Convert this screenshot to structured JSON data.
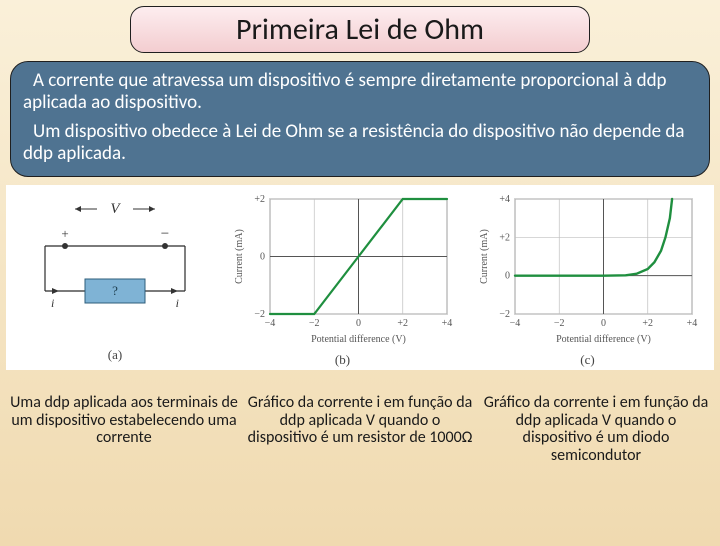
{
  "title": "Primeira Lei de Ohm",
  "desc_p1": "A corrente que atravessa um dispositivo é sempre diretamente proporcional à ddp aplicada ao dispositivo.",
  "desc_p2": "Um dispositivo obedece à Lei de Ohm se a resistência do dispositivo não depende da ddp aplicada.",
  "circuit": {
    "label_a": "(a)",
    "V_label": "V",
    "i_label_left": "i",
    "i_label_right": "i",
    "element_label": "?",
    "plus": "+",
    "minus": "−",
    "wire_color": "#2a2a2a",
    "resistor_fill": "#7fb3d5",
    "bg": "#ffffff"
  },
  "chart_b": {
    "type": "line",
    "label": "(b)",
    "xlabel": "Potential difference (V)",
    "ylabel": "Current (mA)",
    "xlim": [
      -4,
      4
    ],
    "ylim": [
      -2,
      2
    ],
    "xticks": [
      -4,
      -2,
      0,
      2,
      4
    ],
    "yticks": [
      -2,
      0,
      2
    ],
    "ytick_labels": [
      "−2",
      "0",
      "+2"
    ],
    "xtick_labels": [
      "−4",
      "−2",
      "0",
      "+2",
      "+4"
    ],
    "grid_color": "#bfbfbf",
    "axis_color": "#555555",
    "bg": "#ffffff",
    "line_color": "#1f8f3f",
    "line_width": 2.2,
    "data": [
      [
        -4,
        -4
      ],
      [
        4,
        4
      ]
    ],
    "slope_note": "linear through origin; clipped to ylim"
  },
  "chart_c": {
    "type": "line",
    "label": "(c)",
    "xlabel": "Potential difference (V)",
    "ylabel": "Current (mA)",
    "xlim": [
      -4,
      4
    ],
    "ylim": [
      -2,
      4
    ],
    "xticks": [
      -4,
      -2,
      0,
      2,
      4
    ],
    "yticks": [
      -2,
      0,
      2,
      4
    ],
    "ytick_labels": [
      "−2",
      "0",
      "+2",
      "+4"
    ],
    "xtick_labels": [
      "−4",
      "−2",
      "0",
      "+2",
      "+4"
    ],
    "grid_color": "#bfbfbf",
    "axis_color": "#555555",
    "bg": "#ffffff",
    "line_color": "#1f8f3f",
    "line_width": 2.4,
    "data": [
      [
        -4,
        0
      ],
      [
        -2,
        0
      ],
      [
        0,
        0
      ],
      [
        1,
        0.02
      ],
      [
        1.5,
        0.1
      ],
      [
        2,
        0.35
      ],
      [
        2.3,
        0.7
      ],
      [
        2.6,
        1.3
      ],
      [
        2.8,
        2.0
      ],
      [
        3.0,
        3.0
      ],
      [
        3.1,
        4.0
      ]
    ]
  },
  "captions": {
    "a": "Uma ddp aplicada aos terminais de um dispositivo estabelecendo uma corrente",
    "b": "Gráfico da corrente i em função da ddp aplicada V quando o dispositivo é um resistor de 1000Ω",
    "c": "Gráfico da corrente i em função da ddp aplicada V quando o dispositivo é um diodo semicondutor"
  },
  "style": {
    "title_bg_top": "#fdedef",
    "title_bg_bottom": "#f3cdd0",
    "desc_bg": "#4f7391",
    "page_bg_top": "#faf0d9",
    "page_bg_bottom": "#f0dab0",
    "title_fontsize": 30,
    "desc_fontsize": 19,
    "caption_fontsize": 16
  }
}
